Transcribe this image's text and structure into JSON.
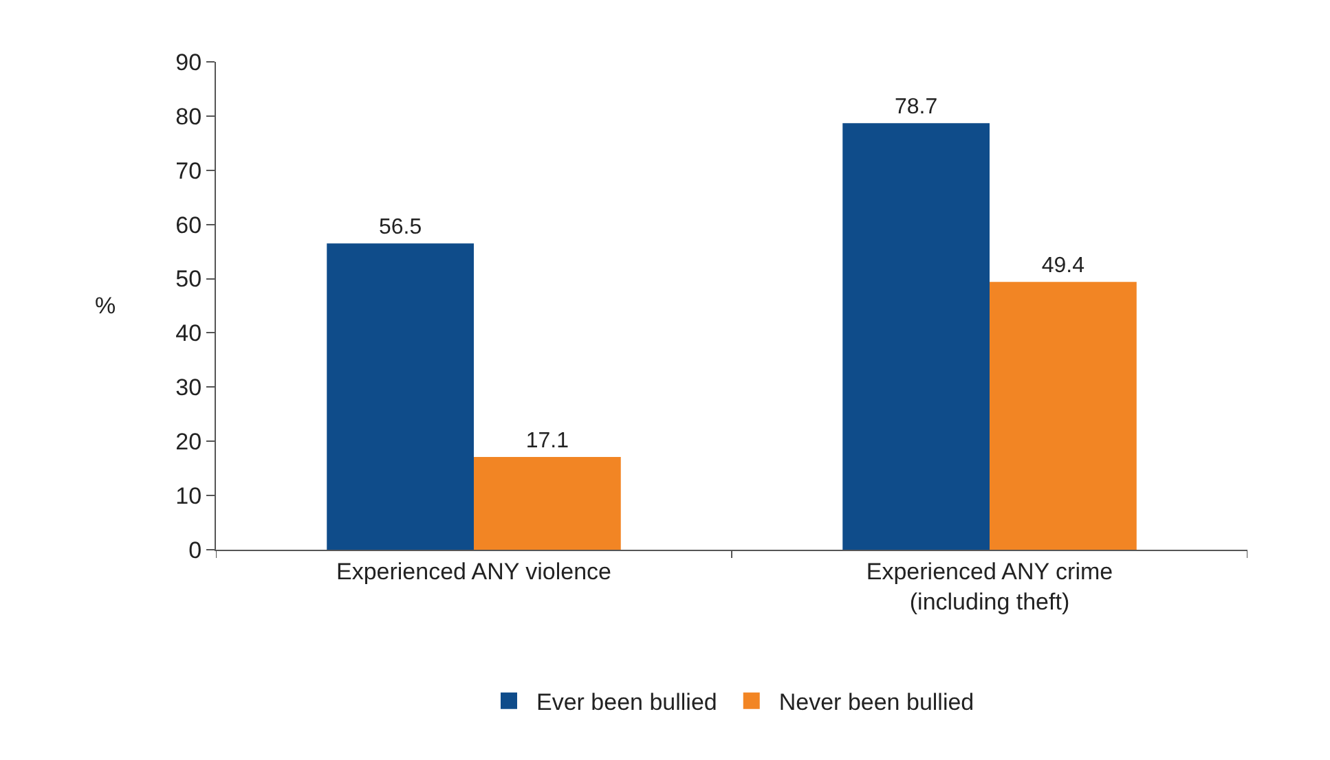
{
  "chart_data": {
    "type": "bar",
    "ylabel": "%",
    "categories": [
      "Experienced ANY violence",
      "Experienced ANY crime\n(including theft)"
    ],
    "series": [
      {
        "name": "Ever been bullied",
        "color": "#0f4c8a",
        "values": [
          56.5,
          78.7
        ]
      },
      {
        "name": "Never been bullied",
        "color": "#f28524",
        "values": [
          17.1,
          49.4
        ]
      }
    ],
    "ylim": [
      0,
      90
    ],
    "yticks": [
      0,
      10,
      20,
      30,
      40,
      50,
      60,
      70,
      80,
      90
    ],
    "data_labels": true,
    "legend": "bottom"
  }
}
